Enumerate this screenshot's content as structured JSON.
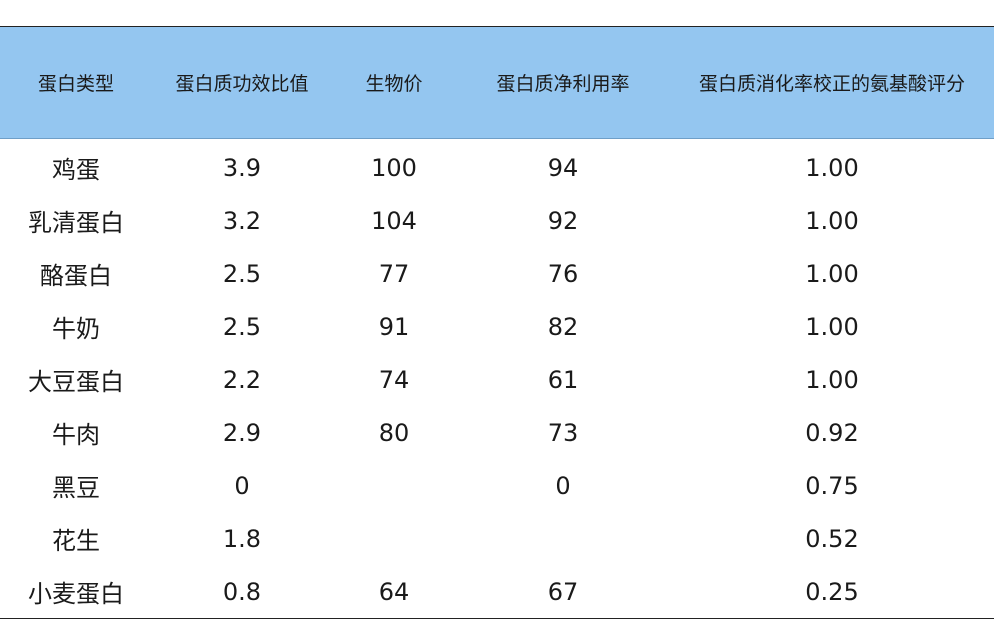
{
  "table": {
    "headers": [
      "蛋白类型",
      "蛋白质功效比值",
      "生物价",
      "蛋白质净利用率",
      "蛋白质消化率校正的氨基酸评分"
    ],
    "rows": [
      [
        "鸡蛋",
        "3.9",
        "100",
        "94",
        "1.00"
      ],
      [
        "乳清蛋白",
        "3.2",
        "104",
        "92",
        "1.00"
      ],
      [
        "酪蛋白",
        "2.5",
        "77",
        "76",
        "1.00"
      ],
      [
        "牛奶",
        "2.5",
        "91",
        "82",
        "1.00"
      ],
      [
        "大豆蛋白",
        "2.2",
        "74",
        "61",
        "1.00"
      ],
      [
        "牛肉",
        "2.9",
        "80",
        "73",
        "0.92"
      ],
      [
        "黑豆",
        "0",
        "",
        "0",
        "0.75"
      ],
      [
        "花生",
        "1.8",
        "",
        "",
        "0.52"
      ],
      [
        "小麦蛋白",
        "0.8",
        "64",
        "67",
        "0.25"
      ]
    ]
  },
  "colors": {
    "header_background": "#94c6f0",
    "rule": "#222222",
    "text": "#1a1a1a"
  }
}
